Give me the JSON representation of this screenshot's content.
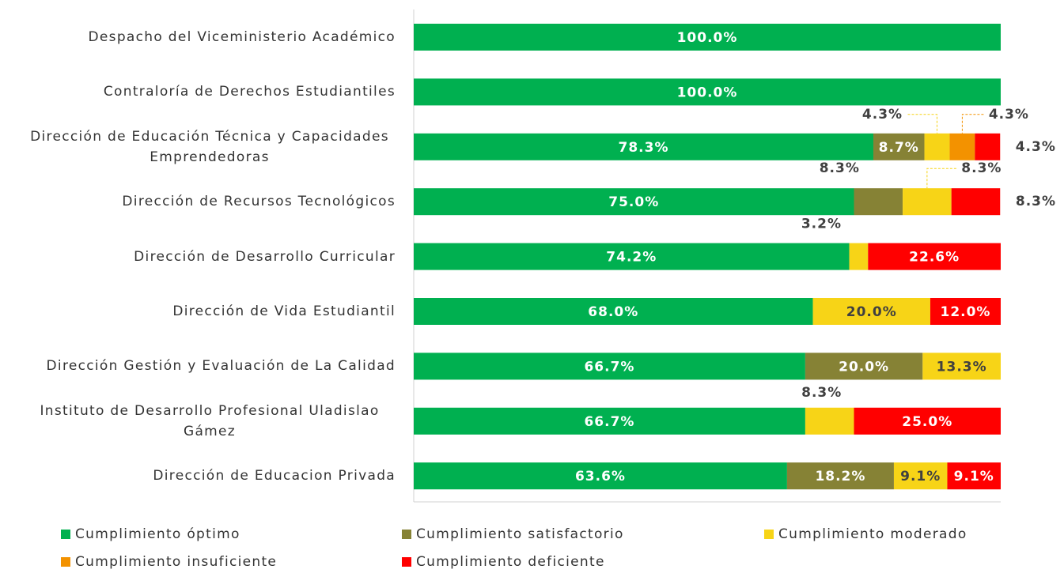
{
  "chart_data": {
    "type": "stacked-barh",
    "categories": [
      "Despacho del Viceministerio Académico",
      "Contraloría de Derechos Estudiantiles",
      "Dirección de Educación Técnica y Capacidades Emprendedoras",
      "Dirección de Recursos Tecnológicos",
      "Dirección de Desarrollo Curricular",
      "Dirección de Vida Estudiantil",
      "Dirección Gestión y Evaluación de La Calidad",
      "Instituto de Desarrollo Profesional Uladislao Gámez",
      "Dirección de Educacion Privada"
    ],
    "xlim": [
      0,
      100
    ],
    "series": [
      {
        "name": "Cumplimiento óptimo",
        "color": "#00b050",
        "values": [
          100,
          100,
          78.3,
          75.0,
          74.2,
          68.0,
          66.7,
          66.7,
          63.6
        ],
        "value_labels": [
          "100.0%",
          "100.0%",
          "78.3%",
          "75.0%",
          "74.2%",
          "68.0%",
          "66.7%",
          "66.7%",
          "63.6%"
        ]
      },
      {
        "name": "Cumplimiento satisfactorio",
        "color": "#868235",
        "values": [
          null,
          null,
          8.7,
          8.3,
          null,
          null,
          20.0,
          null,
          18.2
        ],
        "value_labels": [
          null,
          null,
          "8.7%",
          "8.3%",
          null,
          null,
          "20.0%",
          null,
          "18.2%"
        ]
      },
      {
        "name": "Cumplimiento moderado",
        "color": "#f7d417",
        "values": [
          null,
          null,
          4.3,
          8.3,
          3.2,
          20.0,
          13.3,
          8.3,
          9.1
        ],
        "value_labels": [
          null,
          null,
          "4.3%",
          "8.3%",
          "3.2%",
          "20.0%",
          "13.3%",
          "8.3%",
          "9.1%"
        ]
      },
      {
        "name": "Cumplimiento insuficiente",
        "color": "#f39200",
        "values": [
          null,
          null,
          4.3,
          null,
          null,
          null,
          null,
          null,
          null
        ],
        "value_labels": [
          null,
          null,
          "4.3%",
          null,
          null,
          null,
          null,
          null,
          null
        ]
      },
      {
        "name": "Cumplimiento deficiente",
        "color": "#ff0000",
        "values": [
          null,
          null,
          4.3,
          8.3,
          22.6,
          12.0,
          null,
          25.0,
          9.1
        ],
        "value_labels": [
          null,
          null,
          "4.3%",
          "8.3%",
          "22.6%",
          "12.0%",
          null,
          "25.0%",
          "9.1%"
        ]
      }
    ]
  }
}
